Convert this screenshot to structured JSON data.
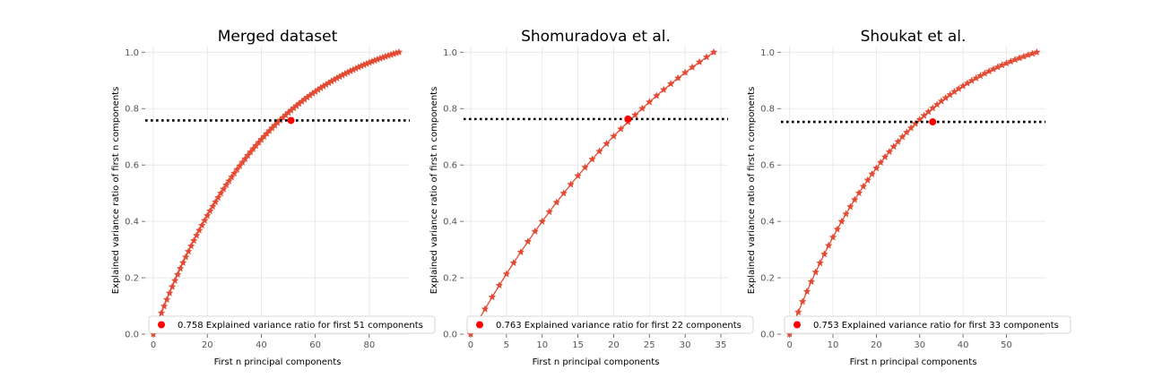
{
  "chart_data": [
    {
      "type": "line",
      "title": "Merged dataset",
      "xlabel": "First n principal components",
      "ylabel": "Explained variance ratio of first n components",
      "xlim": [
        -3,
        95
      ],
      "ylim": [
        0,
        1.02
      ],
      "xticks": [
        0,
        20,
        40,
        60,
        80
      ],
      "yticks": [
        0.0,
        0.2,
        0.4,
        0.6,
        0.8,
        1.0
      ],
      "tick_labels_y": [
        "0.0",
        "0.2",
        "0.4",
        "0.6",
        "0.8",
        "1.0"
      ],
      "grid": true,
      "legend_position": "lower-right",
      "n_components": 91,
      "curve_shape": 1.35,
      "series": [
        {
          "marker": "star",
          "color": "#e24a33"
        }
      ],
      "threshold_line": {
        "y": 0.758,
        "style": "dotted",
        "color": "#000000"
      },
      "highlight_point": {
        "x": 51,
        "y": 0.758,
        "color": "#ff0000"
      },
      "legend_text": "0.758 Explained variance ratio for first 51 components"
    },
    {
      "type": "line",
      "title": "Shomuradova et al.",
      "xlabel": "First n principal components",
      "ylabel": "Explained variance ratio of first n components",
      "xlim": [
        -1,
        36
      ],
      "ylim": [
        0,
        1.02
      ],
      "xticks": [
        0,
        5,
        10,
        15,
        20,
        25,
        30,
        35
      ],
      "yticks": [
        0.0,
        0.2,
        0.4,
        0.6,
        0.8,
        1.0
      ],
      "tick_labels_y": [
        "0.0",
        "0.2",
        "0.4",
        "0.6",
        "0.8",
        "1.0"
      ],
      "grid": true,
      "legend_position": "lower-right",
      "n_components": 34,
      "curve_shape": 0.55,
      "series": [
        {
          "marker": "star",
          "color": "#e24a33"
        }
      ],
      "threshold_line": {
        "y": 0.763,
        "style": "dotted",
        "color": "#000000"
      },
      "highlight_point": {
        "x": 22,
        "y": 0.763,
        "color": "#ff0000"
      },
      "legend_text": "0.763 Explained variance ratio for first 22 components"
    },
    {
      "type": "line",
      "title": "Shoukat et al.",
      "xlabel": "First n principal components",
      "ylabel": "Explained variance ratio of first n components",
      "xlim": [
        -2,
        59
      ],
      "ylim": [
        0,
        1.02
      ],
      "xticks": [
        0,
        10,
        20,
        30,
        40,
        50
      ],
      "yticks": [
        0.0,
        0.2,
        0.4,
        0.6,
        0.8,
        1.0
      ],
      "tick_labels_y": [
        "0.0",
        "0.2",
        "0.4",
        "0.6",
        "0.8",
        "1.0"
      ],
      "grid": true,
      "legend_position": "lower-right",
      "n_components": 57,
      "curve_shape": 1.3,
      "series": [
        {
          "marker": "star",
          "color": "#e24a33"
        }
      ],
      "threshold_line": {
        "y": 0.753,
        "style": "dotted",
        "color": "#000000"
      },
      "highlight_point": {
        "x": 33,
        "y": 0.753,
        "color": "#ff0000"
      },
      "legend_text": "0.753 Explained variance ratio for first 33 components"
    }
  ]
}
